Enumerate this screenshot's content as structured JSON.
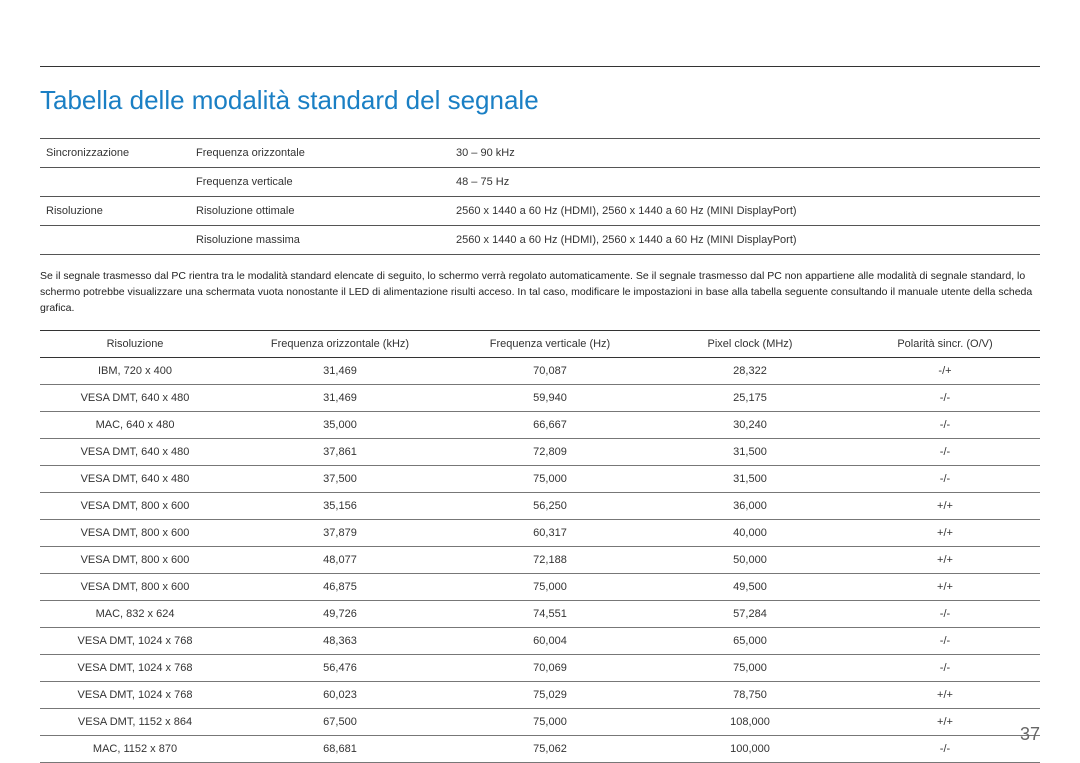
{
  "title": "Tabella delle modalità standard del segnale",
  "spec": {
    "rows": [
      {
        "a": "Sincronizzazione",
        "b": "Frequenza orizzontale",
        "c": "30 – 90 kHz"
      },
      {
        "a": "",
        "b": "Frequenza verticale",
        "c": "48 – 75 Hz"
      },
      {
        "a": "Risoluzione",
        "b": "Risoluzione ottimale",
        "c": "2560 x 1440 a 60 Hz (HDMI), 2560 x 1440 a 60 Hz (MINI DisplayPort)"
      },
      {
        "a": "",
        "b": "Risoluzione massima",
        "c": "2560 x 1440 a 60 Hz (HDMI), 2560 x 1440 a 60 Hz (MINI DisplayPort)"
      }
    ]
  },
  "description": "Se il segnale trasmesso dal PC rientra tra le modalità standard elencate di seguito, lo schermo verrà regolato automaticamente. Se il segnale trasmesso dal PC non appartiene alle modalità di segnale standard, lo schermo potrebbe visualizzare una schermata vuota nonostante il LED di alimentazione risulti acceso. In tal caso, modificare le impostazioni in base alla tabella seguente consultando il manuale utente della scheda grafica.",
  "table": {
    "headers": [
      "Risoluzione",
      "Frequenza orizzontale (kHz)",
      "Frequenza verticale (Hz)",
      "Pixel clock (MHz)",
      "Polarità sincr. (O/V)"
    ],
    "rows": [
      [
        "IBM, 720 x 400",
        "31,469",
        "70,087",
        "28,322",
        "-/+"
      ],
      [
        "VESA DMT, 640 x 480",
        "31,469",
        "59,940",
        "25,175",
        "-/-"
      ],
      [
        "MAC, 640 x 480",
        "35,000",
        "66,667",
        "30,240",
        "-/-"
      ],
      [
        "VESA DMT, 640 x 480",
        "37,861",
        "72,809",
        "31,500",
        "-/-"
      ],
      [
        "VESA DMT, 640 x 480",
        "37,500",
        "75,000",
        "31,500",
        "-/-"
      ],
      [
        "VESA DMT, 800 x 600",
        "35,156",
        "56,250",
        "36,000",
        "+/+"
      ],
      [
        "VESA DMT, 800 x 600",
        "37,879",
        "60,317",
        "40,000",
        "+/+"
      ],
      [
        "VESA DMT, 800 x 600",
        "48,077",
        "72,188",
        "50,000",
        "+/+"
      ],
      [
        "VESA DMT, 800 x 600",
        "46,875",
        "75,000",
        "49,500",
        "+/+"
      ],
      [
        "MAC, 832 x 624",
        "49,726",
        "74,551",
        "57,284",
        "-/-"
      ],
      [
        "VESA DMT, 1024 x 768",
        "48,363",
        "60,004",
        "65,000",
        "-/-"
      ],
      [
        "VESA DMT, 1024 x 768",
        "56,476",
        "70,069",
        "75,000",
        "-/-"
      ],
      [
        "VESA DMT, 1024 x 768",
        "60,023",
        "75,029",
        "78,750",
        "+/+"
      ],
      [
        "VESA DMT, 1152 x 864",
        "67,500",
        "75,000",
        "108,000",
        "+/+"
      ],
      [
        "MAC, 1152 x 870",
        "68,681",
        "75,062",
        "100,000",
        "-/-"
      ]
    ]
  },
  "page_number": "37",
  "colors": {
    "title": "#1a7fc4",
    "text": "#333333",
    "rule": "#333333",
    "row_border": "#777777"
  }
}
